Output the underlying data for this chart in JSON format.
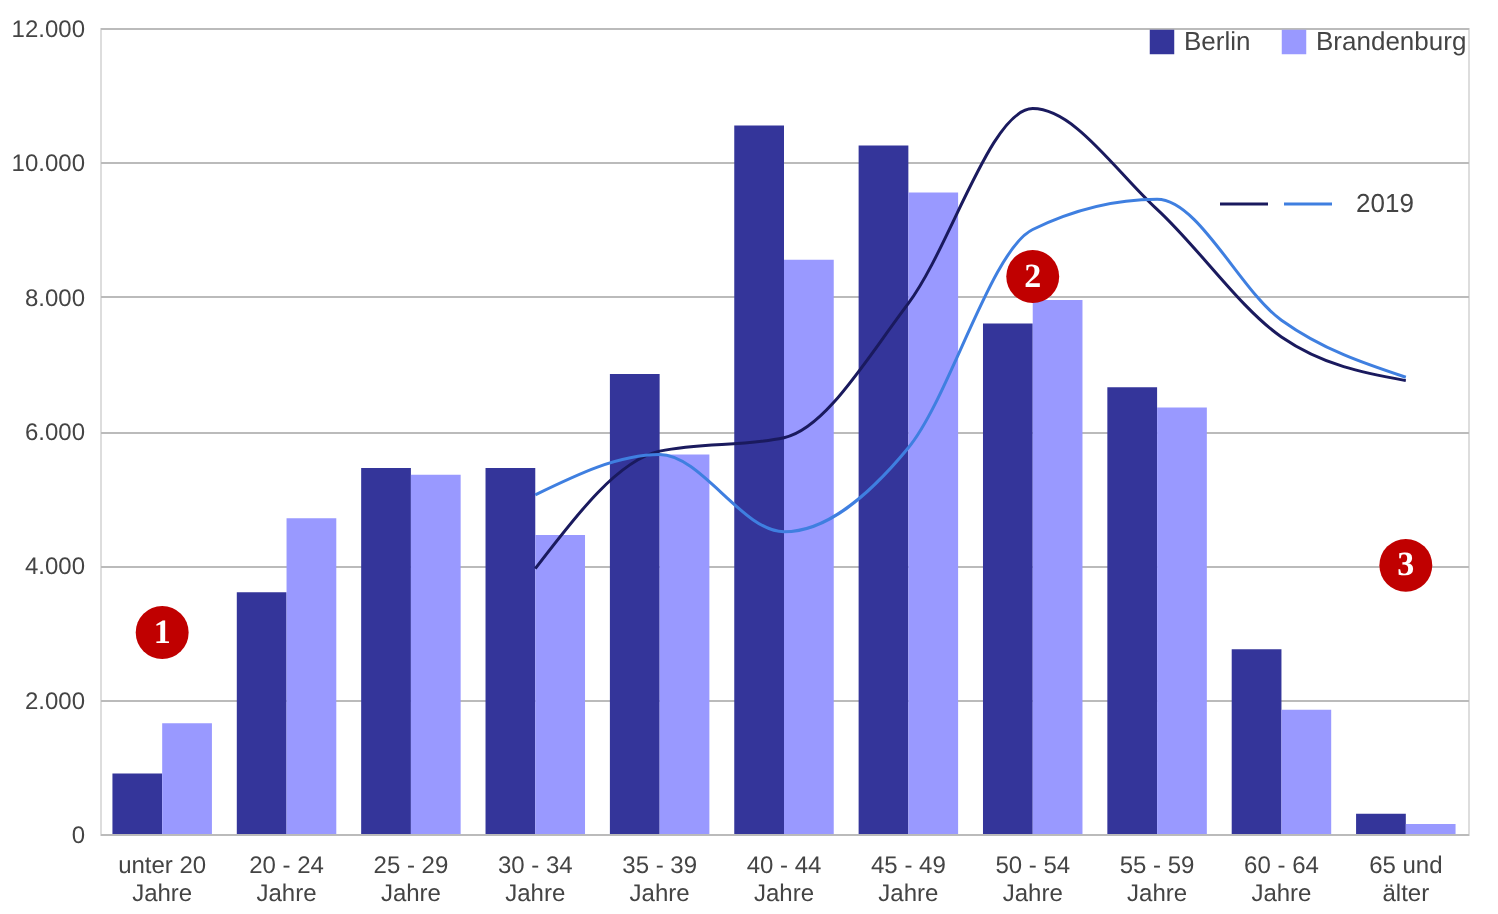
{
  "chart_data": {
    "type": "bar",
    "categories": [
      "unter 20 Jahre",
      "20 - 24 Jahre",
      "25 - 29 Jahre",
      "30 - 34 Jahre",
      "35 - 39 Jahre",
      "40 - 44 Jahre",
      "45 - 49 Jahre",
      "50 - 54 Jahre",
      "55 - 59 Jahre",
      "60 - 64 Jahre",
      "65 und älter"
    ],
    "series": [
      {
        "name": "Berlin",
        "color": "#34359a",
        "values": [
          900,
          3600,
          5450,
          5450,
          6850,
          10550,
          10250,
          7600,
          6650,
          2750,
          300
        ]
      },
      {
        "name": "Brandenburg",
        "color": "#9999ff",
        "values": [
          1650,
          4700,
          5350,
          4450,
          5650,
          8550,
          9550,
          7950,
          6350,
          1850,
          150
        ]
      },
      {
        "type": "line",
        "color": "#1a1a5e",
        "values": [
          null,
          null,
          null,
          3950,
          5700,
          5900,
          7900,
          10800,
          9300,
          7400,
          6750
        ]
      },
      {
        "name": "2019",
        "type": "line",
        "color": "#3f7fe0",
        "values": [
          null,
          null,
          null,
          5050,
          5650,
          4500,
          5750,
          9000,
          9450,
          7650,
          6800
        ]
      }
    ],
    "ylim": [
      0,
      12000
    ],
    "yticks": [
      0,
      {
        "value": 2000,
        "label": "2.000"
      },
      {
        "value": 4000,
        "label": "4.000"
      },
      {
        "value": 6000,
        "label": "6.000"
      },
      {
        "value": 8000,
        "label": "8.000"
      },
      {
        "value": 10000,
        "label": "10.000"
      },
      {
        "value": 12000,
        "label": "12.000"
      }
    ],
    "grid": "y",
    "legend": "top right",
    "annotations": [
      {
        "text": "1",
        "x": "unter 20 Jahre",
        "y": 3000
      },
      {
        "text": "2",
        "x": "50 - 54 Jahre",
        "y": 8300
      },
      {
        "text": "3",
        "x": "65 und älter",
        "y": 4000
      }
    ]
  }
}
